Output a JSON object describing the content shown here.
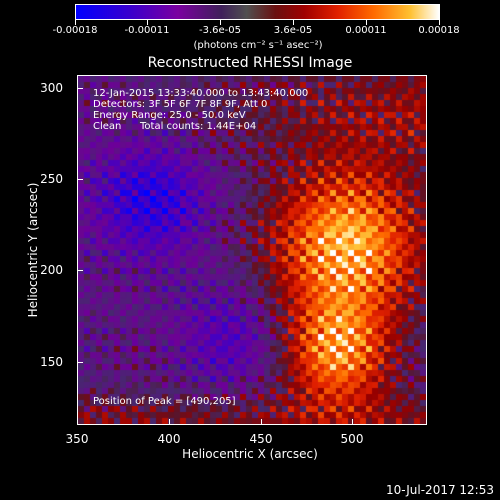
{
  "colorbar": {
    "tick_labels": [
      "-0.00018",
      "-0.00011",
      "-3.6e-05",
      "3.6e-05",
      "0.00011",
      "0.00018"
    ],
    "units": "(photons cm⁻² s⁻¹ asec⁻²)"
  },
  "plot": {
    "title": "Reconstructed RHESSI Image",
    "xlabel": "Heliocentric X (arcsec)",
    "ylabel": "Heliocentric Y (arcsec)",
    "x_ticks": [
      "350",
      "400",
      "450",
      "500"
    ],
    "y_ticks": [
      "300",
      "250",
      "200",
      "150"
    ],
    "info": {
      "time_range": "12-Jan-2015 13:33:40.000 to 13:43:40.000",
      "detectors": "Detectors: 3F 5F 6F 7F 8F 9F, Att 0",
      "energy": "Energy Range: 25.0 - 50.0 keV",
      "method": "Clean",
      "counts": "Total counts: 1.44E+04",
      "peak": "Position of Peak = [490,205]"
    }
  },
  "footer": {
    "timestamp": "10-Jul-2017 12:53"
  },
  "chart_data": {
    "type": "heatmap",
    "title": "Reconstructed RHESSI Image",
    "xlabel": "Heliocentric X (arcsec)",
    "ylabel": "Heliocentric Y (arcsec)",
    "xlim": [
      350,
      540
    ],
    "ylim": [
      115,
      305
    ],
    "colorbar_range": [
      -0.00018,
      0.00018
    ],
    "peak": [
      490,
      205
    ],
    "bright_sources": [
      [
        495,
        215
      ],
      [
        490,
        155
      ]
    ]
  }
}
